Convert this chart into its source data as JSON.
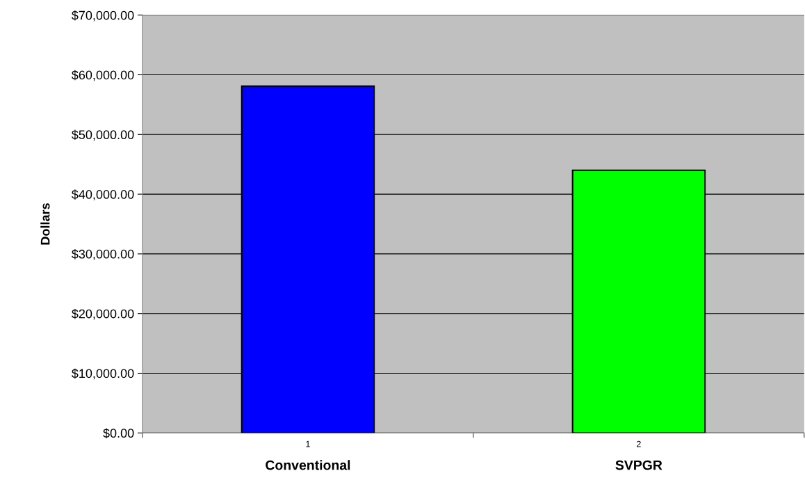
{
  "chart_data": {
    "type": "bar",
    "ylabel": "Dollars",
    "categories": [
      "1",
      "2"
    ],
    "values": [
      58100,
      44000
    ],
    "colors": [
      "#0000ff",
      "#00ff00"
    ],
    "ylim": [
      0,
      70000
    ],
    "yticks": [
      {
        "value": 0,
        "label": "$0.00"
      },
      {
        "value": 10000,
        "label": "$10,000.00"
      },
      {
        "value": 20000,
        "label": "$20,000.00"
      },
      {
        "value": 30000,
        "label": "$30,000.00"
      },
      {
        "value": 40000,
        "label": "$40,000.00"
      },
      {
        "value": 50000,
        "label": "$50,000.00"
      },
      {
        "value": 60000,
        "label": "$60,000.00"
      },
      {
        "value": 70000,
        "label": "$70,000.00"
      }
    ],
    "grid": "y",
    "annotations": [
      "Conventional",
      "SVPGR"
    ]
  }
}
